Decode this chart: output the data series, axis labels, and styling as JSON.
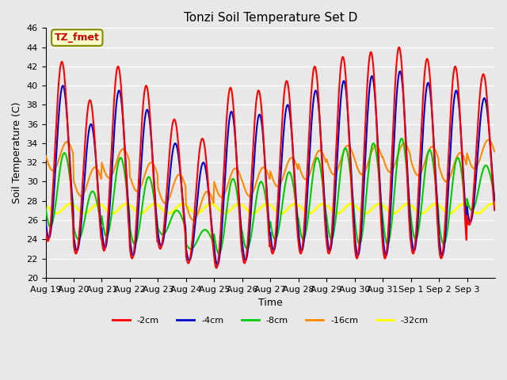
{
  "title": "Tonzi Soil Temperature Set D",
  "xlabel": "Time",
  "ylabel": "Soil Temperature (C)",
  "ylim": [
    20,
    46
  ],
  "yticks": [
    20,
    22,
    24,
    26,
    28,
    30,
    32,
    34,
    36,
    38,
    40,
    42,
    44,
    46
  ],
  "background_color": "#e8e8e8",
  "plot_bg_color": "#e8e8e8",
  "line_colors": {
    "-2cm": "#ff0000",
    "-4cm": "#0000cc",
    "-8cm": "#00cc00",
    "-16cm": "#ff8800",
    "-32cm": "#ffff00"
  },
  "line_widths": {
    "-2cm": 1.5,
    "-4cm": 1.5,
    "-8cm": 1.5,
    "-16cm": 1.5,
    "-32cm": 2.0
  },
  "annotation_text": "TZ_fmet",
  "annotation_color": "#cc0000",
  "annotation_bg": "#ffffcc",
  "annotation_border": "#888800",
  "legend_labels": [
    "-2cm",
    "-4cm",
    "-8cm",
    "-16cm",
    "-32cm"
  ],
  "x_tick_labels": [
    "Aug 19",
    "Aug 20",
    "Aug 21",
    "Aug 22",
    "Aug 23",
    "Aug 24",
    "Aug 25",
    "Aug 26",
    "Aug 27",
    "Aug 28",
    "Aug 29",
    "Aug 30",
    "Aug 31",
    "Sep 1",
    "Sep 2",
    "Sep 3"
  ],
  "n_days": 16,
  "points_per_day": 48,
  "peaks_2cm": [
    42.5,
    38.5,
    42.0,
    40.0,
    36.5,
    34.5,
    39.8,
    39.5,
    40.5,
    42.0,
    43.0,
    43.5,
    44.0,
    42.8,
    42.0,
    41.2
  ],
  "mins_2cm": [
    23.8,
    22.5,
    22.8,
    22.0,
    23.0,
    21.5,
    21.0,
    21.5,
    22.5,
    22.5,
    22.5,
    22.0,
    22.0,
    22.5,
    22.0,
    25.5
  ]
}
